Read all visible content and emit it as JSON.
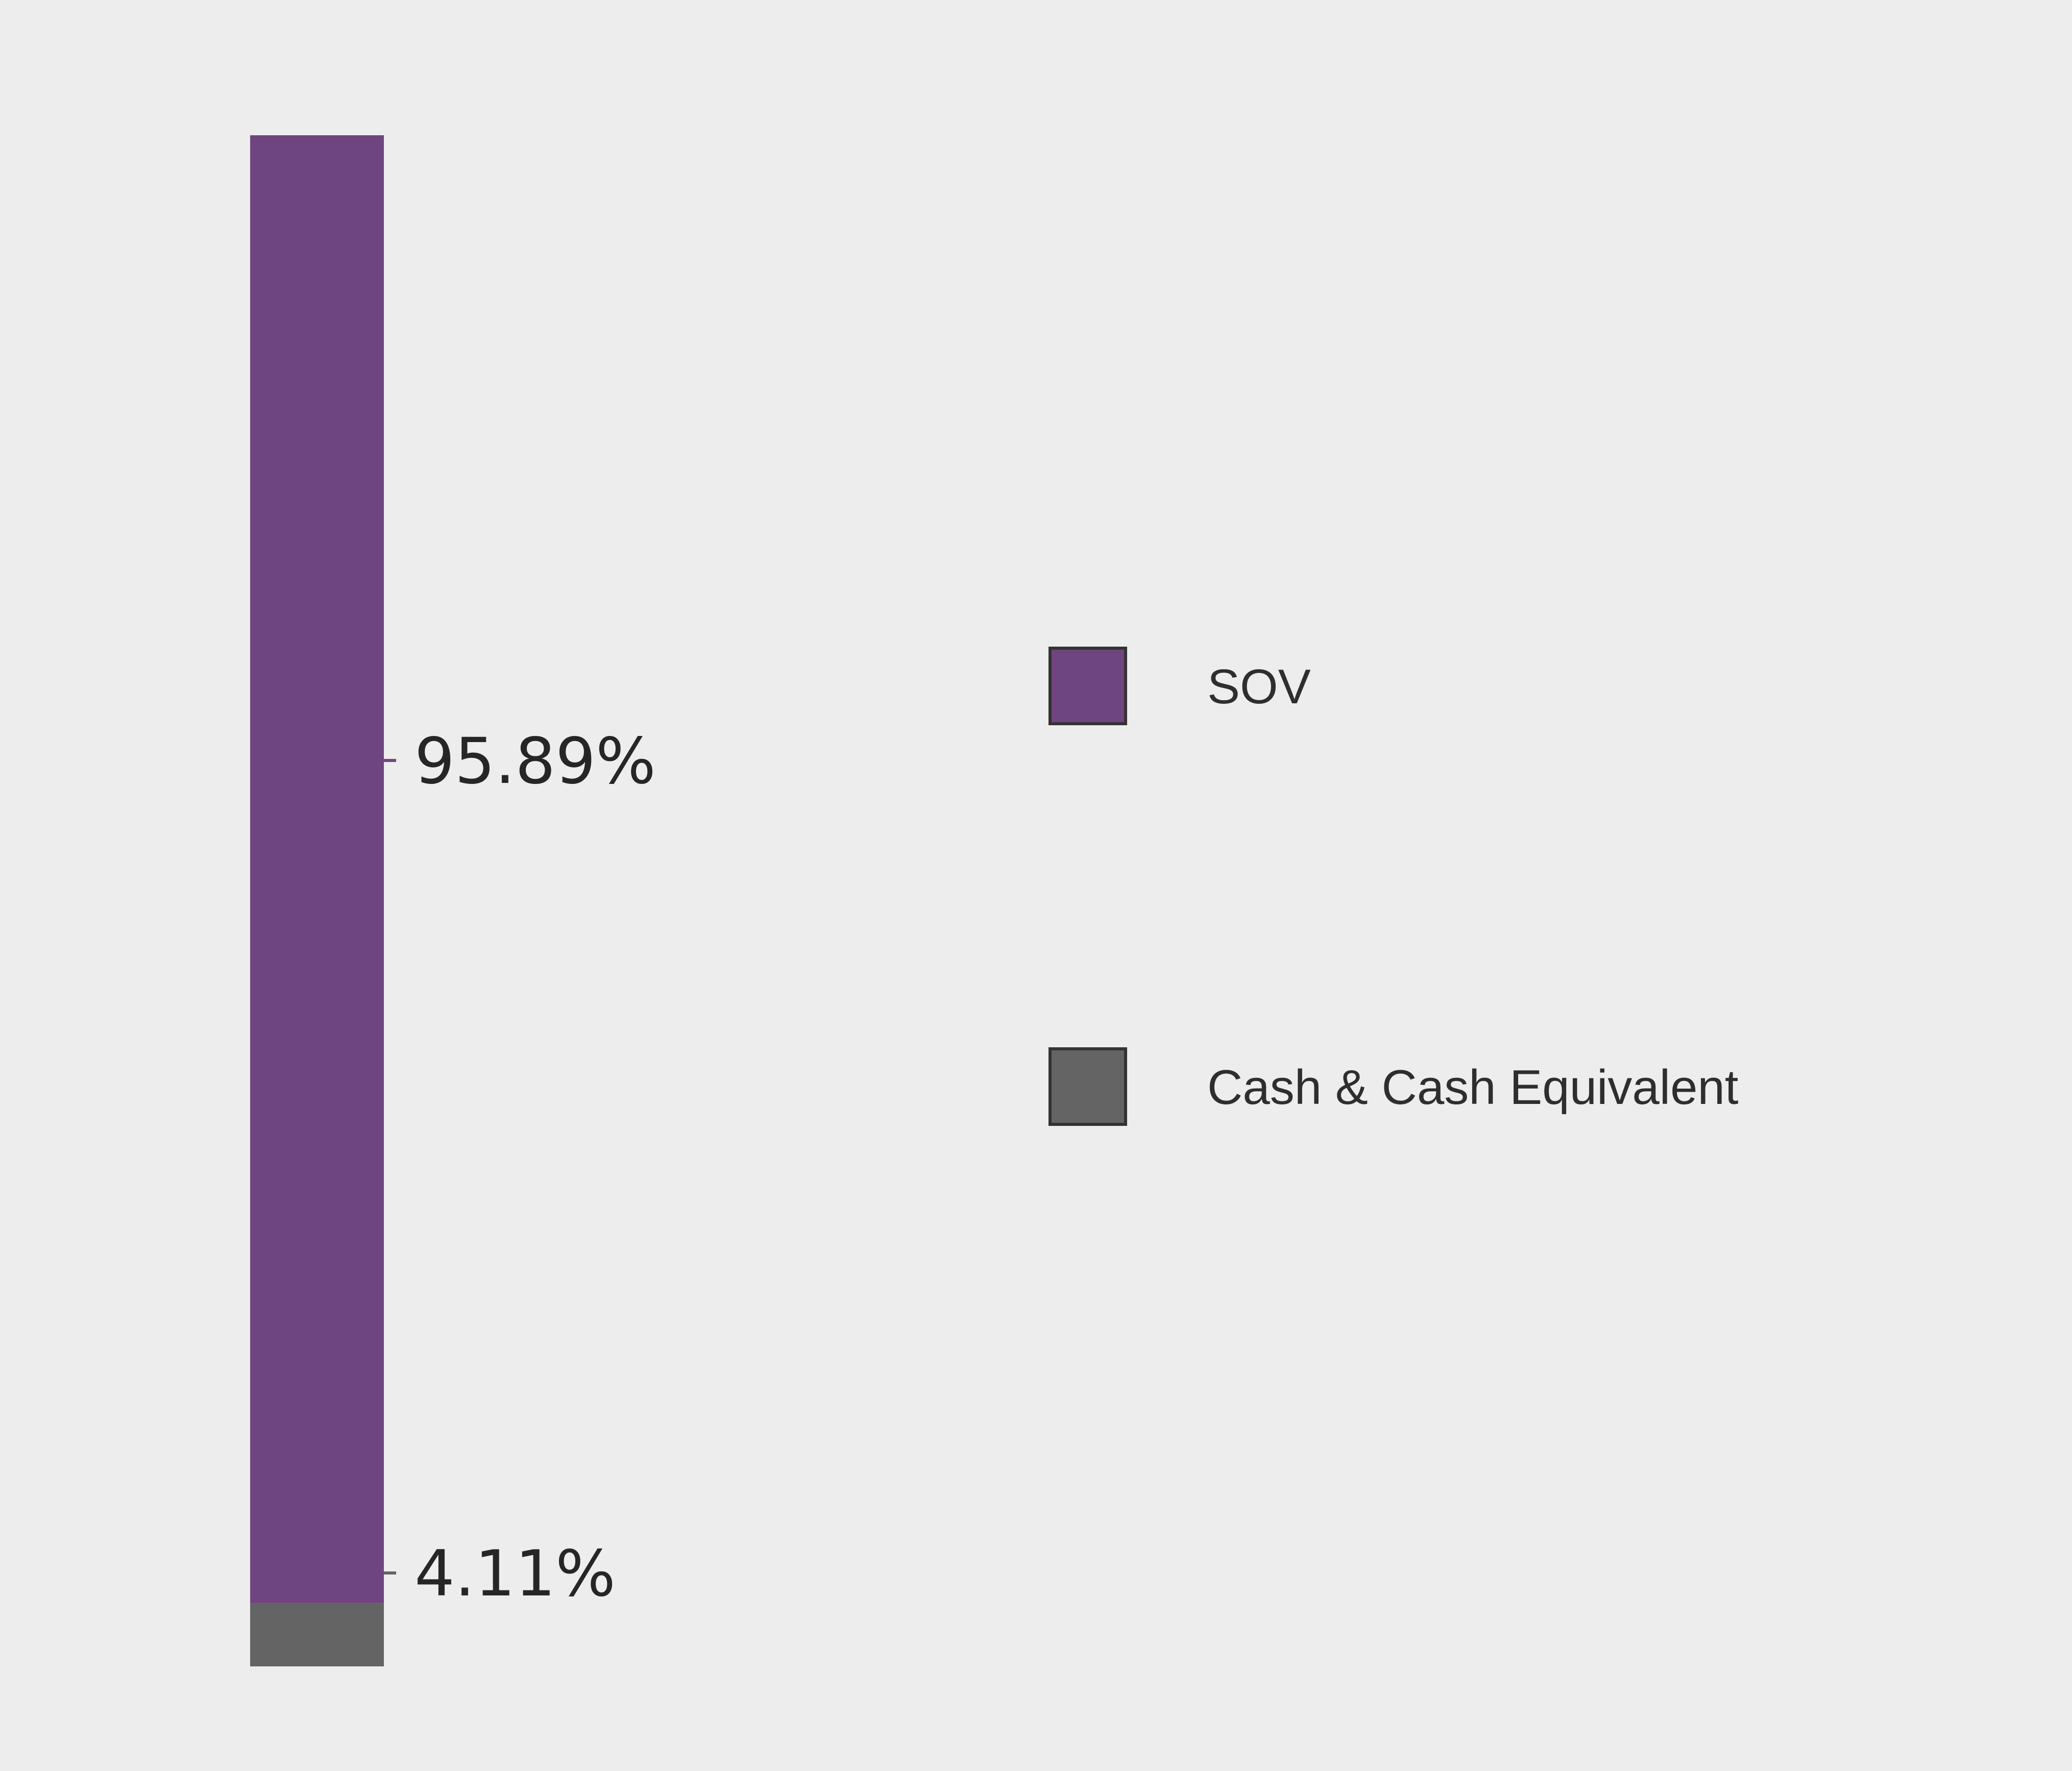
{
  "chart_data": {
    "type": "bar",
    "stacked": true,
    "orientation": "vertical",
    "series": [
      {
        "name": "SOV",
        "value": 95.89,
        "label": "95.89%",
        "color": "#6F4580"
      },
      {
        "name": "Cash & Cash Equivalent",
        "value": 4.11,
        "label": "4.11%",
        "color": "#646464"
      }
    ],
    "ylim": [
      0,
      100
    ],
    "legend": {
      "placement": "right",
      "items": [
        "SOV",
        "Cash & Cash Equivalent"
      ]
    },
    "title": "",
    "xlabel": "",
    "ylabel": ""
  }
}
